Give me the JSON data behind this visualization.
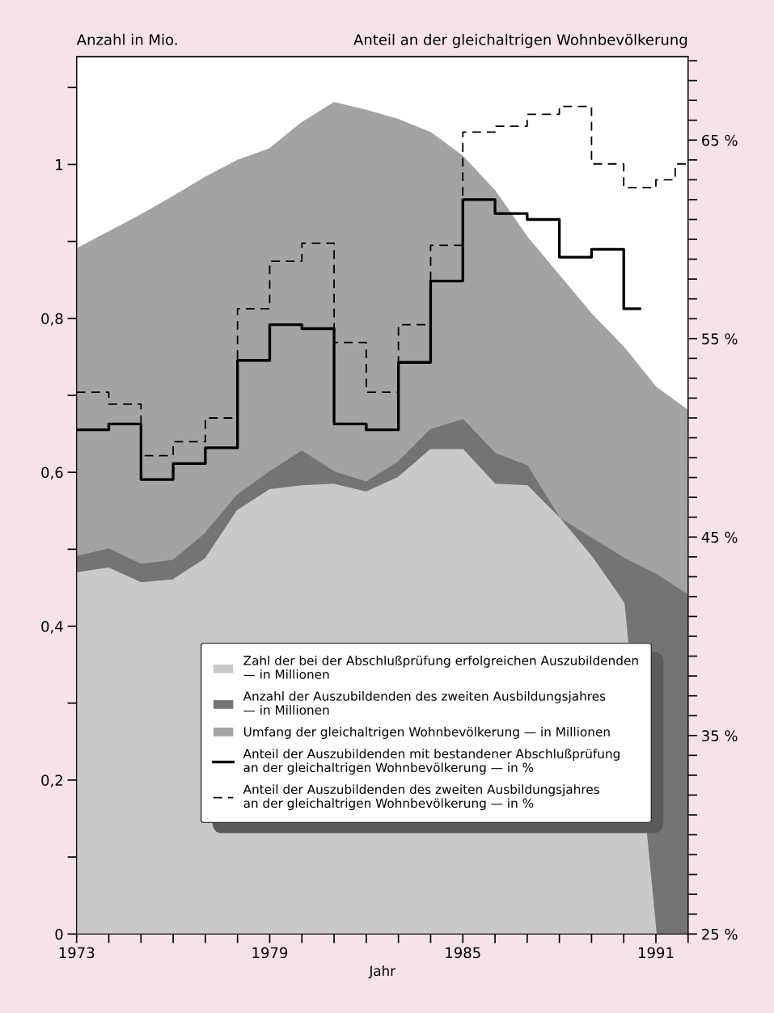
{
  "chart_data": {
    "type": "area",
    "xlabel": "Jahr",
    "ylabel": "Anzahl in Mio.",
    "y2label": "Anteil an der gleichaltrigen Wohnbevölkerung",
    "xlim": [
      1973,
      1992
    ],
    "ylim": [
      0,
      1.14
    ],
    "y2lim": [
      25,
      69.2
    ],
    "xticks": [
      1973,
      {
        "value": 1974,
        "label": null
      },
      {
        "value": 1975,
        "label": null
      },
      {
        "value": 1976,
        "label": null
      },
      {
        "value": 1977,
        "label": null
      },
      {
        "value": 1978,
        "label": null
      },
      1979,
      {
        "value": 1980,
        "label": null
      },
      {
        "value": 1981,
        "label": null
      },
      {
        "value": 1982,
        "label": null
      },
      {
        "value": 1983,
        "label": null
      },
      {
        "value": 1984,
        "label": null
      },
      1985,
      {
        "value": 1986,
        "label": null
      },
      {
        "value": 1987,
        "label": null
      },
      {
        "value": 1988,
        "label": null
      },
      {
        "value": 1989,
        "label": null
      },
      {
        "value": 1990,
        "label": null
      },
      1991,
      {
        "value": 1992,
        "label": null
      }
    ],
    "yticks": [
      0,
      {
        "value": 0.1,
        "label": null
      },
      {
        "value": 0.2,
        "label": "0,2"
      },
      {
        "value": 0.3,
        "label": null
      },
      {
        "value": 0.4,
        "label": "0,4"
      },
      {
        "value": 0.5,
        "label": null
      },
      {
        "value": 0.6,
        "label": "0,6"
      },
      {
        "value": 0.7,
        "label": null
      },
      {
        "value": 0.8,
        "label": "0,8"
      },
      {
        "value": 0.9,
        "label": null
      },
      1,
      {
        "value": 1.1,
        "label": null
      }
    ],
    "y2ticks": [
      {
        "value": 25,
        "label": "25 %"
      },
      {
        "value": 26,
        "label": null
      },
      {
        "value": 27,
        "label": null
      },
      {
        "value": 28,
        "label": null
      },
      {
        "value": 29,
        "label": null
      },
      {
        "value": 30,
        "label": null
      },
      {
        "value": 31,
        "label": null
      },
      {
        "value": 32,
        "label": null
      },
      {
        "value": 33,
        "label": null
      },
      {
        "value": 34,
        "label": null
      },
      {
        "value": 35,
        "label": "35 %"
      },
      {
        "value": 36,
        "label": null
      },
      {
        "value": 37,
        "label": null
      },
      {
        "value": 38,
        "label": null
      },
      {
        "value": 39,
        "label": null
      },
      {
        "value": 40,
        "label": null
      },
      {
        "value": 41,
        "label": null
      },
      {
        "value": 42,
        "label": null
      },
      {
        "value": 43,
        "label": null
      },
      {
        "value": 44,
        "label": null
      },
      {
        "value": 45,
        "label": "45 %"
      },
      {
        "value": 46,
        "label": null
      },
      {
        "value": 47,
        "label": null
      },
      {
        "value": 48,
        "label": null
      },
      {
        "value": 49,
        "label": null
      },
      {
        "value": 50,
        "label": null
      },
      {
        "value": 51,
        "label": null
      },
      {
        "value": 52,
        "label": null
      },
      {
        "value": 53,
        "label": null
      },
      {
        "value": 54,
        "label": null
      },
      {
        "value": 55,
        "label": "55 %"
      },
      {
        "value": 56,
        "label": null
      },
      {
        "value": 57,
        "label": null
      },
      {
        "value": 58,
        "label": null
      },
      {
        "value": 59,
        "label": null
      },
      {
        "value": 60,
        "label": null
      },
      {
        "value": 61,
        "label": null
      },
      {
        "value": 62,
        "label": null
      },
      {
        "value": 63,
        "label": null
      },
      {
        "value": 64,
        "label": null
      },
      {
        "value": 65,
        "label": "65 %"
      },
      {
        "value": 66,
        "label": null
      },
      {
        "value": 67,
        "label": null
      },
      {
        "value": 68,
        "label": null
      },
      {
        "value": 69,
        "label": null
      }
    ],
    "grid": false,
    "legend": "lower right",
    "marker": "none",
    "series": [
      {
        "name": "Zahl der bei der Abschlußprüfung erfolgreichen Auszubildenden\n— in Millionen",
        "color": "#c9c9c9",
        "x": [
          1973,
          1974,
          1975,
          1976,
          1977,
          1978,
          1979,
          1980,
          1981,
          1982,
          1983,
          1984,
          1985,
          1986,
          1987,
          1988,
          1989,
          1990,
          1991
        ],
        "values": [
          0.469,
          0.475,
          0.456,
          0.46,
          0.487,
          0.55,
          0.577,
          0.582,
          0.584,
          0.574,
          0.593,
          0.629,
          0.629,
          0.584,
          0.582,
          0.54,
          0.49,
          0.43,
          0
        ]
      },
      {
        "name": "Anzahl der Auszubildenden des zweiten Ausbildungsjahres\n— in Millionen",
        "color": "#747474",
        "x": [
          1973,
          1974,
          1975,
          1976,
          1977,
          1978,
          1979,
          1980,
          1981,
          1982,
          1983,
          1984,
          1985,
          1986,
          1987,
          1988,
          1989,
          1990,
          1991,
          1992
        ],
        "values": [
          0.49,
          0.5,
          0.48,
          0.485,
          0.52,
          0.57,
          0.6,
          0.627,
          0.6,
          0.587,
          0.613,
          0.655,
          0.668,
          0.624,
          0.608,
          0.54,
          0.514,
          0.488,
          0.467,
          0.44
        ]
      },
      {
        "name": "Umfang der gleichaltrigen Wohnbevölkerung — in Millionen",
        "color": "#a3a3a3",
        "x": [
          1973,
          1974,
          1975,
          1976,
          1977,
          1978,
          1979,
          1980,
          1981,
          1982,
          1983,
          1984,
          1985,
          1986,
          1987,
          1988,
          1989,
          1990,
          1991,
          1992
        ],
        "values": [
          0.89,
          0.912,
          0.934,
          0.958,
          0.983,
          1.005,
          1.02,
          1.054,
          1.08,
          1.07,
          1.058,
          1.041,
          1.01,
          0.965,
          0.905,
          0.855,
          0.805,
          0.762,
          0.71,
          0.68
        ]
      },
      {
        "name": "Anteil der Auszubildenden mit bestandener Abschlußprüfung\nan der gleichaltrigen Wohnbevölkerung — in %",
        "type": "step",
        "axis": "y2",
        "color": "#000000",
        "line_style": "solid",
        "x": [
          1973,
          1974,
          1975,
          1976,
          1977,
          1978,
          1979,
          1980,
          1981,
          1982,
          1983,
          1984,
          1985,
          1986,
          1987,
          1988,
          1989,
          1990,
          1990.5
        ],
        "values": [
          50.4,
          50.7,
          47.9,
          48.7,
          49.5,
          53.9,
          55.7,
          55.5,
          50.7,
          50.4,
          53.8,
          57.9,
          62.0,
          61.3,
          61.0,
          59.1,
          59.5,
          56.5,
          56.5
        ]
      },
      {
        "name": "Anteil der Auszubildenden des zweiten Ausbildungsjahres\nan der gleichaltrigen Wohnbevölkerung — in %",
        "type": "step",
        "axis": "y2",
        "color": "#000000",
        "line_style": "dashed",
        "x": [
          1973,
          1974,
          1975,
          1976,
          1977,
          1978,
          1979,
          1980,
          1981,
          1982,
          1983,
          1984,
          1985,
          1986,
          1987,
          1988,
          1989,
          1990,
          1991,
          1991.6,
          1992
        ],
        "values": [
          52.3,
          51.7,
          49.1,
          49.8,
          51.0,
          56.5,
          58.9,
          59.8,
          54.8,
          52.3,
          55.7,
          59.7,
          65.4,
          65.7,
          66.3,
          66.7,
          63.8,
          62.6,
          63.0,
          63.8,
          63.8
        ]
      }
    ]
  }
}
